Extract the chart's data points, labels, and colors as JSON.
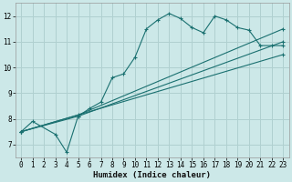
{
  "xlabel": "Humidex (Indice chaleur)",
  "bg_color": "#cce8e8",
  "grid_color": "#b0d0d0",
  "line_color": "#1a7070",
  "xlim": [
    -0.5,
    23.5
  ],
  "ylim": [
    6.5,
    12.5
  ],
  "xticks": [
    0,
    1,
    2,
    3,
    4,
    5,
    6,
    7,
    8,
    9,
    10,
    11,
    12,
    13,
    14,
    15,
    16,
    17,
    18,
    19,
    20,
    21,
    22,
    23
  ],
  "yticks": [
    7,
    8,
    9,
    10,
    11,
    12
  ],
  "jagged_x": [
    0,
    1,
    3,
    4,
    5,
    6,
    7,
    8,
    9,
    10,
    11,
    12,
    13,
    14,
    15,
    16,
    17,
    18,
    19,
    20,
    21,
    22,
    23
  ],
  "jagged_y": [
    7.5,
    7.9,
    7.4,
    6.7,
    8.1,
    8.4,
    8.65,
    9.6,
    9.75,
    10.4,
    11.5,
    11.85,
    12.1,
    11.9,
    11.55,
    11.35,
    12.0,
    11.85,
    11.55,
    11.45,
    10.85,
    10.85,
    10.85
  ],
  "line1_x": [
    0,
    5,
    23
  ],
  "line1_y": [
    7.5,
    8.15,
    11.5
  ],
  "line2_x": [
    0,
    5,
    23
  ],
  "line2_y": [
    7.5,
    8.1,
    11.0
  ],
  "line3_x": [
    0,
    23
  ],
  "line3_y": [
    7.5,
    10.5
  ]
}
